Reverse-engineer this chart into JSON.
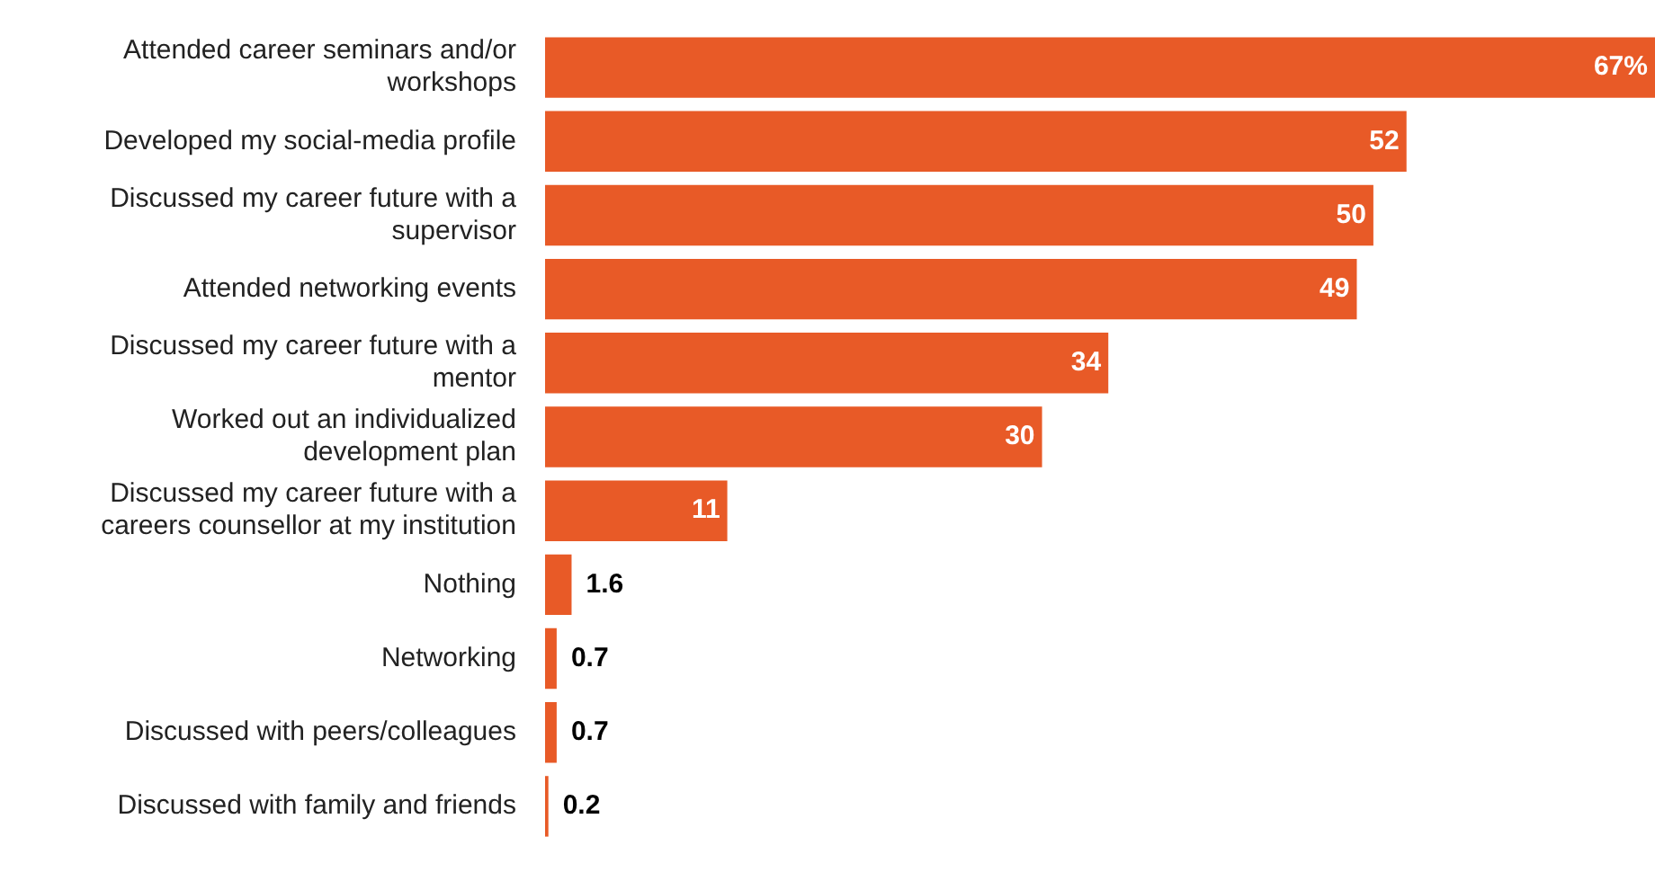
{
  "chart_data": {
    "type": "bar",
    "orientation": "horizontal",
    "categories": [
      "Attended career seminars and/or workshops",
      "Developed my social-media profile",
      "Discussed my career future with a supervisor",
      "Attended networking events",
      "Discussed my career future with a mentor",
      "Worked out an individualized development plan",
      "Discussed my career future with a careers counsellor at my institution",
      "Nothing",
      "Networking",
      "Discussed with peers/colleagues",
      "Discussed with family and friends"
    ],
    "values": [
      67,
      52,
      50,
      49,
      34,
      30,
      11,
      1.6,
      0.7,
      0.7,
      0.2
    ],
    "value_labels": [
      "67%",
      "52",
      "50",
      "49",
      "34",
      "30",
      "11",
      "1.6",
      "0.7",
      "0.7",
      "0.2"
    ],
    "color": "#e85a27"
  }
}
